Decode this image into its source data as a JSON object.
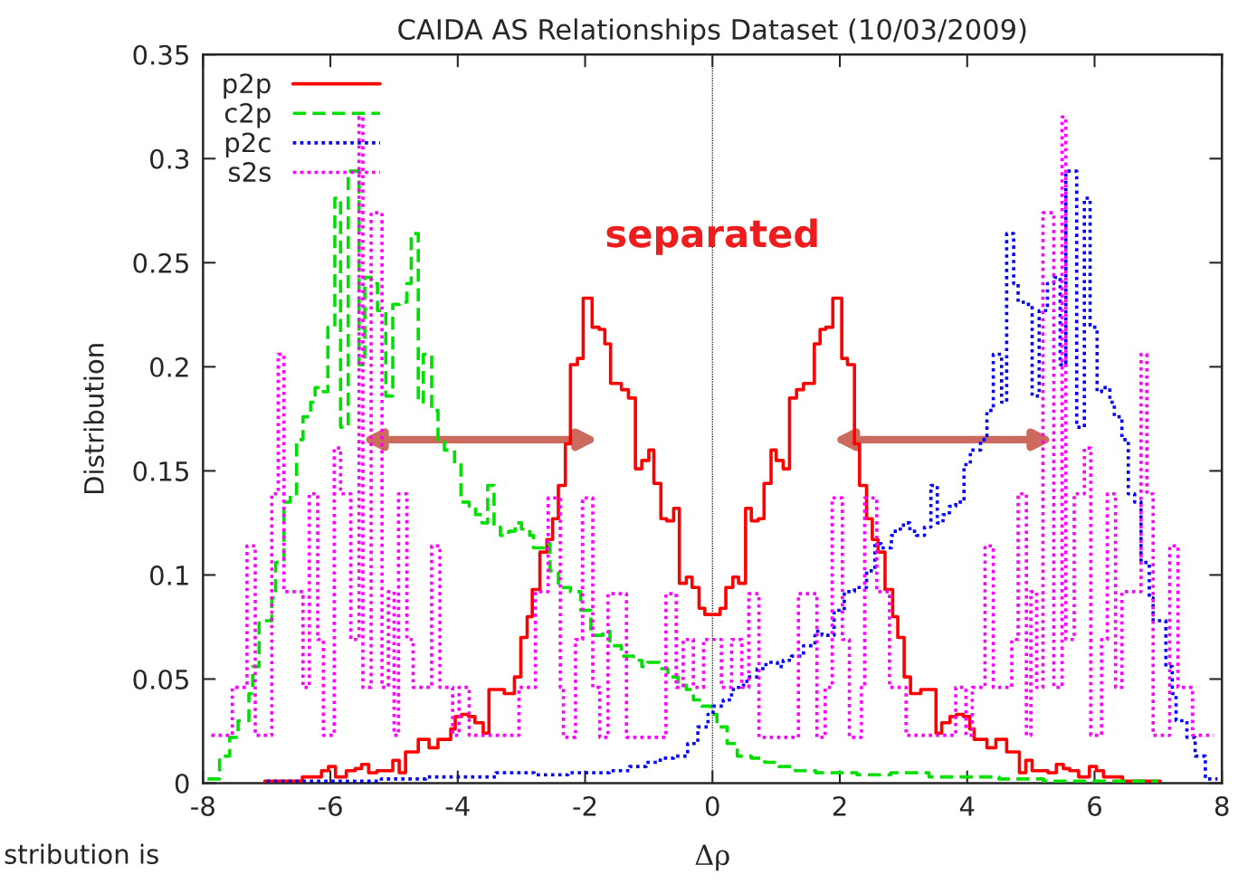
{
  "chart_data": {
    "type": "step",
    "title": "CAIDA AS Relationships Dataset (10/03/2009)",
    "xlabel": "Δρ",
    "ylabel": "Distribution",
    "xlim": [
      -8,
      8
    ],
    "xticks": [
      -8,
      -6,
      -4,
      -2,
      0,
      2,
      4,
      6,
      8
    ],
    "ylim": [
      0,
      0.35
    ],
    "yticks": [
      0,
      0.05,
      0.1,
      0.15,
      0.2,
      0.25,
      0.3,
      0.35
    ],
    "grid": false,
    "legend": "top left",
    "annotations": [
      "separated",
      "stribution is"
    ],
    "ref_lines": [
      {
        "axis": "x",
        "value": 0,
        "color": "#000000",
        "line_style": "dotted"
      }
    ],
    "series": [
      {
        "name": "p2p",
        "color": "#ff0000",
        "line_style": "solid",
        "x": [
          -7.03,
          -6.44,
          -6.14,
          -6.03,
          -5.92,
          -5.75,
          -5.61,
          -5.51,
          -5.4,
          -5.27,
          -5.02,
          -4.92,
          -4.82,
          -4.62,
          -4.45,
          -4.31,
          -4.11,
          -4.04,
          -3.94,
          -3.83,
          -3.73,
          -3.6,
          -3.51,
          -3.27,
          -3.11,
          -3.01,
          -2.91,
          -2.83,
          -2.71,
          -2.6,
          -2.51,
          -2.42,
          -2.31,
          -2.23,
          -2.12,
          -2.03,
          -1.89,
          -1.78,
          -1.69,
          -1.6,
          -1.43,
          -1.32,
          -1.21,
          -1.11,
          -1.0,
          -0.92,
          -0.81,
          -0.72,
          -0.61,
          -0.52,
          -0.41,
          -0.32,
          -0.21,
          -0.12,
          0.12,
          0.21,
          0.32,
          0.41,
          0.52,
          0.61,
          0.72,
          0.81,
          0.92,
          1.0,
          1.11,
          1.21,
          1.32,
          1.43,
          1.6,
          1.69,
          1.78,
          1.89,
          2.03,
          2.12,
          2.23,
          2.31,
          2.42,
          2.51,
          2.6,
          2.71,
          2.83,
          2.91,
          3.01,
          3.11,
          3.27,
          3.51,
          3.6,
          3.73,
          3.83,
          3.94,
          4.04,
          4.11,
          4.31,
          4.45,
          4.62,
          4.82,
          4.92,
          5.02,
          5.27,
          5.4,
          5.51,
          5.61,
          5.75,
          5.92,
          6.03,
          6.14,
          6.44,
          7.03
        ],
        "values": [
          0.001,
          0.003,
          0.006,
          0.008,
          0.003,
          0.006,
          0.007,
          0.009,
          0.005,
          0.006,
          0.011,
          0.005,
          0.015,
          0.021,
          0.017,
          0.021,
          0.026,
          0.032,
          0.033,
          0.032,
          0.029,
          0.024,
          0.045,
          0.043,
          0.051,
          0.07,
          0.08,
          0.093,
          0.111,
          0.117,
          0.127,
          0.143,
          0.163,
          0.201,
          0.204,
          0.233,
          0.219,
          0.218,
          0.211,
          0.192,
          0.189,
          0.185,
          0.151,
          0.155,
          0.16,
          0.144,
          0.127,
          0.126,
          0.132,
          0.096,
          0.099,
          0.094,
          0.084,
          0.081,
          0.084,
          0.094,
          0.099,
          0.096,
          0.132,
          0.126,
          0.127,
          0.144,
          0.16,
          0.155,
          0.151,
          0.185,
          0.189,
          0.192,
          0.211,
          0.218,
          0.219,
          0.233,
          0.204,
          0.201,
          0.163,
          0.143,
          0.127,
          0.117,
          0.111,
          0.093,
          0.08,
          0.07,
          0.051,
          0.043,
          0.045,
          0.024,
          0.029,
          0.032,
          0.033,
          0.032,
          0.026,
          0.021,
          0.017,
          0.021,
          0.015,
          0.005,
          0.011,
          0.006,
          0.005,
          0.009,
          0.007,
          0.006,
          0.003,
          0.008,
          0.006,
          0.003,
          0.001,
          0.001
        ]
      },
      {
        "name": "c2p",
        "color": "#00e000",
        "line_style": "dashed",
        "x": [
          -7.93,
          -7.74,
          -7.58,
          -7.45,
          -7.28,
          -7.22,
          -7.12,
          -6.92,
          -6.86,
          -6.73,
          -6.63,
          -6.53,
          -6.43,
          -6.31,
          -6.24,
          -6.11,
          -6.04,
          -5.93,
          -5.84,
          -5.72,
          -5.55,
          -5.46,
          -5.36,
          -5.26,
          -5.13,
          -5.02,
          -4.91,
          -4.8,
          -4.73,
          -4.62,
          -4.54,
          -4.41,
          -4.31,
          -4.21,
          -4.05,
          -3.95,
          -3.82,
          -3.72,
          -3.62,
          -3.53,
          -3.43,
          -3.33,
          -3.2,
          -3.1,
          -3.0,
          -2.87,
          -2.81,
          -2.65,
          -2.55,
          -2.42,
          -2.23,
          -2.07,
          -1.91,
          -1.72,
          -1.61,
          -1.43,
          -1.24,
          -1.11,
          -1.02,
          -0.84,
          -0.7,
          -0.54,
          -0.41,
          -0.3,
          -0.17,
          -0.01,
          0.07,
          0.23,
          0.39,
          0.61,
          0.82,
          1.04,
          1.3,
          1.62,
          2.27,
          2.8,
          3.4,
          4.5,
          5.2,
          7.0
        ],
        "values": [
          0.002,
          0.013,
          0.022,
          0.03,
          0.043,
          0.056,
          0.078,
          0.089,
          0.106,
          0.135,
          0.139,
          0.165,
          0.176,
          0.183,
          0.19,
          0.188,
          0.219,
          0.281,
          0.171,
          0.294,
          0.201,
          0.243,
          0.24,
          0.227,
          0.186,
          0.23,
          0.231,
          0.24,
          0.264,
          0.183,
          0.206,
          0.179,
          0.165,
          0.16,
          0.153,
          0.135,
          0.133,
          0.129,
          0.125,
          0.143,
          0.123,
          0.119,
          0.121,
          0.125,
          0.122,
          0.119,
          0.113,
          0.115,
          0.102,
          0.094,
          0.092,
          0.083,
          0.071,
          0.073,
          0.066,
          0.061,
          0.059,
          0.056,
          0.058,
          0.055,
          0.051,
          0.047,
          0.045,
          0.04,
          0.037,
          0.033,
          0.027,
          0.019,
          0.013,
          0.012,
          0.01,
          0.008,
          0.006,
          0.005,
          0.004,
          0.005,
          0.003,
          0.002,
          0.001,
          0.001
        ]
      },
      {
        "name": "p2c",
        "color": "#0000ff",
        "line_style": "dotted",
        "x": [
          -7.0,
          -5.2,
          -4.5,
          -3.4,
          -2.8,
          -2.27,
          -1.62,
          -1.3,
          -1.04,
          -0.82,
          -0.61,
          -0.39,
          -0.23,
          -0.07,
          0.01,
          0.17,
          0.3,
          0.41,
          0.54,
          0.7,
          0.84,
          1.02,
          1.11,
          1.24,
          1.43,
          1.61,
          1.72,
          1.91,
          2.07,
          2.23,
          2.42,
          2.55,
          2.65,
          2.81,
          2.87,
          3.0,
          3.1,
          3.2,
          3.33,
          3.43,
          3.53,
          3.62,
          3.72,
          3.82,
          3.95,
          4.05,
          4.21,
          4.31,
          4.41,
          4.54,
          4.62,
          4.73,
          4.8,
          4.91,
          5.02,
          5.13,
          5.26,
          5.36,
          5.46,
          5.55,
          5.72,
          5.84,
          5.93,
          6.04,
          6.11,
          6.24,
          6.31,
          6.43,
          6.53,
          6.63,
          6.73,
          6.86,
          6.92,
          7.12,
          7.22,
          7.28,
          7.45,
          7.58,
          7.74,
          7.93
        ],
        "values": [
          0.001,
          0.002,
          0.003,
          0.005,
          0.004,
          0.005,
          0.006,
          0.008,
          0.01,
          0.012,
          0.013,
          0.019,
          0.027,
          0.033,
          0.037,
          0.04,
          0.045,
          0.047,
          0.051,
          0.055,
          0.058,
          0.056,
          0.059,
          0.061,
          0.066,
          0.073,
          0.071,
          0.083,
          0.092,
          0.094,
          0.102,
          0.115,
          0.113,
          0.119,
          0.122,
          0.125,
          0.121,
          0.119,
          0.123,
          0.143,
          0.125,
          0.129,
          0.133,
          0.135,
          0.153,
          0.16,
          0.165,
          0.179,
          0.206,
          0.183,
          0.264,
          0.24,
          0.231,
          0.23,
          0.186,
          0.227,
          0.24,
          0.243,
          0.201,
          0.294,
          0.171,
          0.281,
          0.219,
          0.188,
          0.19,
          0.183,
          0.176,
          0.165,
          0.139,
          0.135,
          0.106,
          0.089,
          0.078,
          0.056,
          0.043,
          0.03,
          0.022,
          0.013,
          0.002,
          0.002
        ]
      },
      {
        "name": "s2s",
        "color": "#ff00ff",
        "line_style": "dotted",
        "x": [
          -7.87,
          -7.54,
          -7.31,
          -7.18,
          -6.92,
          -6.82,
          -6.73,
          -6.43,
          -6.33,
          -6.2,
          -6.11,
          -5.94,
          -5.84,
          -5.68,
          -5.55,
          -5.49,
          -5.36,
          -5.19,
          -5.09,
          -5.0,
          -4.93,
          -4.8,
          -4.7,
          -4.41,
          -4.28,
          -4.08,
          -3.98,
          -3.82,
          -3.04,
          -2.78,
          -2.58,
          -2.39,
          -2.34,
          -2.15,
          -2.04,
          -1.88,
          -1.77,
          -1.64,
          -1.35,
          -0.73,
          -0.57,
          -0.46,
          -0.3,
          -0.14,
          0.14,
          0.3,
          0.46,
          0.57,
          0.73,
          1.35,
          1.64,
          1.77,
          1.88,
          2.04,
          2.15,
          2.34,
          2.39,
          2.58,
          2.78,
          3.04,
          3.82,
          3.98,
          4.08,
          4.28,
          4.41,
          4.7,
          4.8,
          4.93,
          5.0,
          5.09,
          5.19,
          5.36,
          5.49,
          5.55,
          5.68,
          5.84,
          5.94,
          6.11,
          6.2,
          6.33,
          6.43,
          6.73,
          6.82,
          6.92,
          7.18,
          7.31,
          7.54,
          7.87
        ],
        "values": [
          0.023,
          0.046,
          0.114,
          0.023,
          0.139,
          0.206,
          0.092,
          0.046,
          0.139,
          0.069,
          0.023,
          0.161,
          0.139,
          0.069,
          0.32,
          0.046,
          0.274,
          0.046,
          0.092,
          0.023,
          0.139,
          0.069,
          0.046,
          0.114,
          0.046,
          0.023,
          0.046,
          0.023,
          0.046,
          0.092,
          0.137,
          0.046,
          0.022,
          0.069,
          0.137,
          0.046,
          0.022,
          0.091,
          0.022,
          0.091,
          0.046,
          0.069,
          0.046,
          0.069,
          0.046,
          0.069,
          0.046,
          0.091,
          0.022,
          0.091,
          0.022,
          0.046,
          0.137,
          0.069,
          0.022,
          0.046,
          0.137,
          0.092,
          0.046,
          0.023,
          0.046,
          0.023,
          0.046,
          0.114,
          0.046,
          0.069,
          0.139,
          0.023,
          0.092,
          0.046,
          0.274,
          0.046,
          0.32,
          0.069,
          0.139,
          0.161,
          0.023,
          0.069,
          0.139,
          0.046,
          0.092,
          0.206,
          0.139,
          0.023,
          0.114,
          0.046,
          0.023,
          0.023
        ]
      }
    ]
  }
}
